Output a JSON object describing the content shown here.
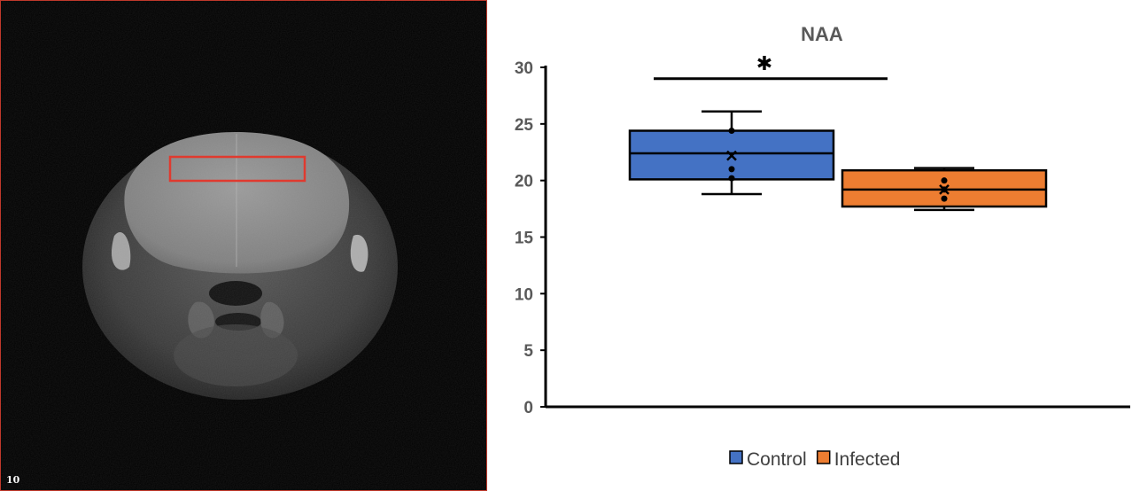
{
  "image_panel": {
    "slice_number": "10",
    "roi_color": "#e03a2f"
  },
  "chart_data": {
    "type": "box",
    "title": "NAA",
    "xlabel": "",
    "ylabel": "",
    "ylim": [
      0,
      30
    ],
    "yticks": [
      0,
      5,
      10,
      15,
      20,
      25,
      30
    ],
    "grid": false,
    "legend_position": "bottom",
    "significance": {
      "between": [
        "Control",
        "Infected"
      ],
      "marker": "✱",
      "y": 29
    },
    "series": [
      {
        "name": "Control",
        "color": "#4472c4",
        "min": 18.8,
        "q1": 20.1,
        "median": 22.4,
        "q3": 24.4,
        "max": 26.1,
        "mean": 22.2,
        "points": [
          20.2,
          21.0,
          24.4
        ]
      },
      {
        "name": "Infected",
        "color": "#ed7d31",
        "min": 17.4,
        "q1": 17.7,
        "median": 19.2,
        "q3": 20.9,
        "max": 21.1,
        "mean": 19.2,
        "points": [
          18.4,
          19.2,
          20.0
        ]
      }
    ]
  }
}
